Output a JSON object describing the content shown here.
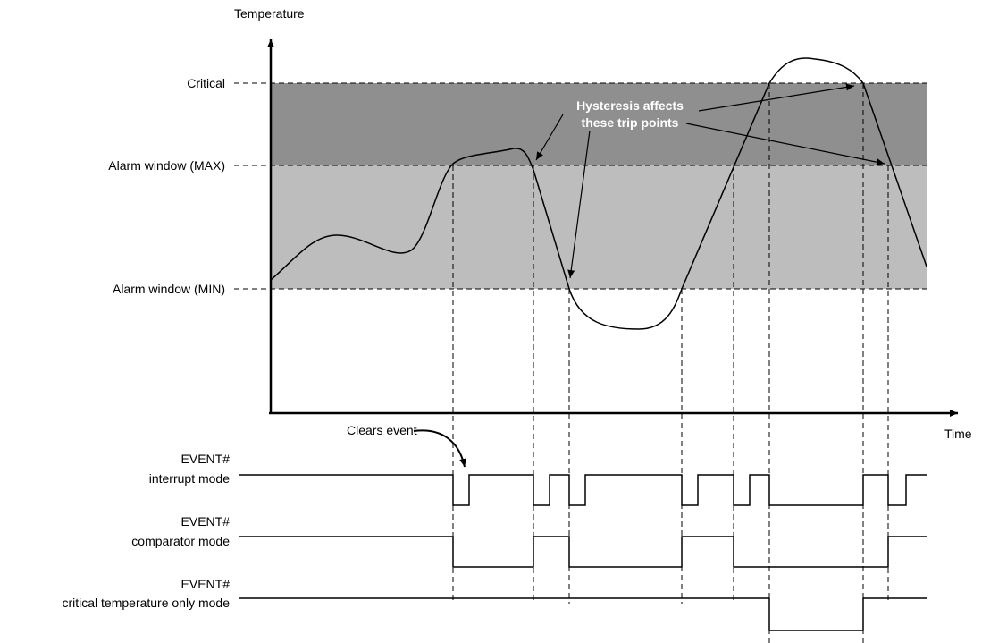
{
  "axes": {
    "y_label": "Temperature",
    "x_label": "Time"
  },
  "levels": {
    "critical": "Critical",
    "max": "Alarm window (MAX)",
    "min": "Alarm window (MIN)"
  },
  "callouts": {
    "hysteresis_line1": "Hysteresis affects",
    "hysteresis_line2": "these trip points",
    "clears_event": "Clears event"
  },
  "signals": {
    "interrupt": {
      "line1": "EVENT#",
      "line2": "interrupt mode"
    },
    "comparator": {
      "line1": "EVENT#",
      "line2": "comparator mode"
    },
    "critical_only": {
      "line1": "EVENT#",
      "line2": "critical temperature only mode"
    }
  },
  "colors": {
    "critical_zone": "#8f8f8f",
    "alarm_zone": "#bdbdbd",
    "background": "#ffffff",
    "ink": "#000000"
  }
}
